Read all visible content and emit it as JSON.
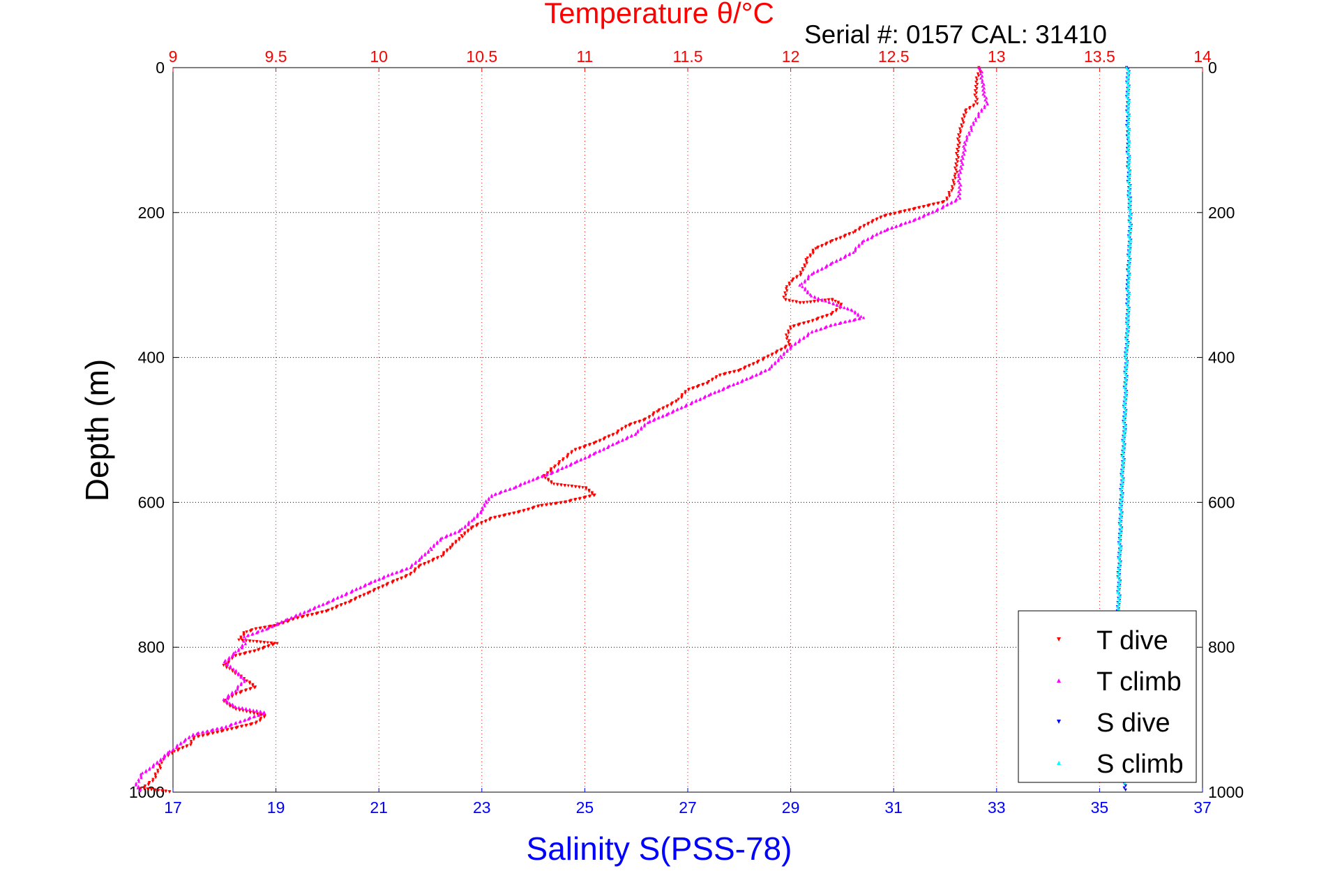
{
  "chart_data": {
    "type": "scatter",
    "title": "Temperature θ/°C",
    "subtitle": "Serial #: 0157  CAL: 31410",
    "xlabel": "Salinity S(PSS-78)",
    "ylabel": "Depth (m)",
    "top_axis": {
      "label": "Temperature θ/°C",
      "range": [
        9,
        14
      ],
      "ticks": [
        "9",
        "9.5",
        "10",
        "10.5",
        "11",
        "11.5",
        "12",
        "12.5",
        "13",
        "13.5",
        "14"
      ],
      "color": "#ff0000"
    },
    "bottom_axis": {
      "label": "Salinity S(PSS-78)",
      "range": [
        17,
        37
      ],
      "ticks": [
        "17",
        "19",
        "21",
        "23",
        "25",
        "27",
        "29",
        "31",
        "33",
        "35",
        "37"
      ],
      "color": "#0000ff"
    },
    "y_axis": {
      "label": "Depth (m)",
      "range": [
        0,
        1000
      ],
      "reversed": true,
      "ticks": [
        "0",
        "200",
        "400",
        "600",
        "800",
        "1000"
      ]
    },
    "grid": true,
    "legend_position": "bottom-right",
    "series": [
      {
        "name": "T dive",
        "axis": "top",
        "color": "#ff0000",
        "marker": "triangle-down",
        "points": [
          [
            12.92,
            0
          ],
          [
            12.9,
            20
          ],
          [
            12.9,
            50
          ],
          [
            12.85,
            60
          ],
          [
            12.82,
            90
          ],
          [
            12.8,
            150
          ],
          [
            12.78,
            170
          ],
          [
            12.75,
            185
          ],
          [
            12.6,
            195
          ],
          [
            12.45,
            205
          ],
          [
            12.38,
            215
          ],
          [
            12.3,
            228
          ],
          [
            12.2,
            240
          ],
          [
            12.12,
            250
          ],
          [
            12.08,
            265
          ],
          [
            12.05,
            285
          ],
          [
            12.0,
            295
          ],
          [
            11.98,
            305
          ],
          [
            11.97,
            320
          ],
          [
            12.05,
            325
          ],
          [
            12.2,
            320
          ],
          [
            12.25,
            328
          ],
          [
            12.2,
            340
          ],
          [
            12.1,
            350
          ],
          [
            12.0,
            358
          ],
          [
            11.98,
            372
          ],
          [
            12.0,
            382
          ],
          [
            11.95,
            390
          ],
          [
            11.85,
            405
          ],
          [
            11.75,
            418
          ],
          [
            11.65,
            425
          ],
          [
            11.6,
            435
          ],
          [
            11.5,
            445
          ],
          [
            11.45,
            460
          ],
          [
            11.35,
            475
          ],
          [
            11.3,
            485
          ],
          [
            11.2,
            495
          ],
          [
            11.15,
            505
          ],
          [
            11.05,
            518
          ],
          [
            10.95,
            528
          ],
          [
            10.9,
            540
          ],
          [
            10.85,
            552
          ],
          [
            10.8,
            565
          ],
          [
            10.85,
            575
          ],
          [
            11.0,
            580
          ],
          [
            11.05,
            590
          ],
          [
            10.9,
            600
          ],
          [
            10.78,
            605
          ],
          [
            10.7,
            612
          ],
          [
            10.55,
            622
          ],
          [
            10.45,
            635
          ],
          [
            10.4,
            648
          ],
          [
            10.35,
            662
          ],
          [
            10.3,
            675
          ],
          [
            10.2,
            688
          ],
          [
            10.15,
            700
          ],
          [
            10.05,
            712
          ],
          [
            9.95,
            725
          ],
          [
            9.85,
            738
          ],
          [
            9.75,
            750
          ],
          [
            9.6,
            760
          ],
          [
            9.5,
            770
          ],
          [
            9.4,
            775
          ],
          [
            9.35,
            780
          ],
          [
            9.32,
            790
          ],
          [
            9.5,
            795
          ],
          [
            9.4,
            805
          ],
          [
            9.3,
            812
          ],
          [
            9.25,
            825
          ],
          [
            9.3,
            835
          ],
          [
            9.35,
            845
          ],
          [
            9.4,
            855
          ],
          [
            9.3,
            865
          ],
          [
            9.25,
            875
          ],
          [
            9.3,
            885
          ],
          [
            9.45,
            895
          ],
          [
            9.4,
            905
          ],
          [
            9.25,
            915
          ],
          [
            9.1,
            925
          ],
          [
            9.08,
            935
          ],
          [
            9.0,
            945
          ],
          [
            8.95,
            955
          ],
          [
            8.93,
            970
          ],
          [
            8.9,
            985
          ],
          [
            8.85,
            995
          ],
          [
            9.0,
            1000
          ]
        ]
      },
      {
        "name": "T climb",
        "axis": "top",
        "color": "#ff00ff",
        "marker": "triangle-up",
        "points": [
          [
            12.92,
            0
          ],
          [
            12.93,
            20
          ],
          [
            12.95,
            50
          ],
          [
            12.9,
            70
          ],
          [
            12.85,
            100
          ],
          [
            12.82,
            150
          ],
          [
            12.82,
            180
          ],
          [
            12.72,
            195
          ],
          [
            12.6,
            210
          ],
          [
            12.45,
            225
          ],
          [
            12.35,
            240
          ],
          [
            12.3,
            255
          ],
          [
            12.2,
            270
          ],
          [
            12.1,
            285
          ],
          [
            12.05,
            300
          ],
          [
            12.1,
            315
          ],
          [
            12.2,
            325
          ],
          [
            12.3,
            335
          ],
          [
            12.35,
            345
          ],
          [
            12.2,
            355
          ],
          [
            12.1,
            365
          ],
          [
            12.05,
            375
          ],
          [
            12.0,
            385
          ],
          [
            11.95,
            400
          ],
          [
            11.9,
            415
          ],
          [
            11.8,
            428
          ],
          [
            11.7,
            440
          ],
          [
            11.6,
            452
          ],
          [
            11.5,
            465
          ],
          [
            11.4,
            478
          ],
          [
            11.3,
            490
          ],
          [
            11.25,
            505
          ],
          [
            11.15,
            518
          ],
          [
            11.05,
            532
          ],
          [
            10.95,
            545
          ],
          [
            10.85,
            558
          ],
          [
            10.75,
            568
          ],
          [
            10.65,
            580
          ],
          [
            10.55,
            590
          ],
          [
            10.52,
            600
          ],
          [
            10.5,
            612
          ],
          [
            10.45,
            625
          ],
          [
            10.4,
            638
          ],
          [
            10.3,
            650
          ],
          [
            10.25,
            665
          ],
          [
            10.2,
            678
          ],
          [
            10.15,
            690
          ],
          [
            10.05,
            700
          ],
          [
            9.95,
            712
          ],
          [
            9.85,
            725
          ],
          [
            9.75,
            738
          ],
          [
            9.65,
            750
          ],
          [
            9.55,
            762
          ],
          [
            9.45,
            775
          ],
          [
            9.35,
            785
          ],
          [
            9.35,
            795
          ],
          [
            9.3,
            808
          ],
          [
            9.25,
            820
          ],
          [
            9.3,
            832
          ],
          [
            9.35,
            845
          ],
          [
            9.3,
            860
          ],
          [
            9.25,
            872
          ],
          [
            9.3,
            882
          ],
          [
            9.45,
            890
          ],
          [
            9.35,
            900
          ],
          [
            9.25,
            910
          ],
          [
            9.1,
            920
          ],
          [
            9.05,
            930
          ],
          [
            8.98,
            945
          ],
          [
            8.92,
            960
          ],
          [
            8.85,
            975
          ],
          [
            8.82,
            990
          ],
          [
            8.85,
            1000
          ]
        ]
      },
      {
        "name": "S dive",
        "axis": "bottom",
        "color": "#0000ff",
        "marker": "triangle-down",
        "points": [
          [
            35.55,
            0
          ],
          [
            35.55,
            100
          ],
          [
            35.58,
            180
          ],
          [
            35.6,
            200
          ],
          [
            35.58,
            250
          ],
          [
            35.55,
            300
          ],
          [
            35.55,
            350
          ],
          [
            35.52,
            400
          ],
          [
            35.5,
            450
          ],
          [
            35.48,
            500
          ],
          [
            35.45,
            550
          ],
          [
            35.42,
            600
          ],
          [
            35.4,
            650
          ],
          [
            35.38,
            700
          ],
          [
            35.37,
            750
          ],
          [
            35.38,
            800
          ],
          [
            35.4,
            850
          ],
          [
            35.42,
            900
          ],
          [
            35.45,
            950
          ],
          [
            35.5,
            1000
          ]
        ]
      },
      {
        "name": "S climb",
        "axis": "bottom",
        "color": "#00ffff",
        "marker": "triangle-up",
        "points": [
          [
            35.55,
            0
          ],
          [
            35.56,
            100
          ],
          [
            35.58,
            180
          ],
          [
            35.6,
            200
          ],
          [
            35.58,
            250
          ],
          [
            35.56,
            300
          ],
          [
            35.55,
            350
          ],
          [
            35.52,
            400
          ],
          [
            35.5,
            450
          ],
          [
            35.48,
            500
          ],
          [
            35.45,
            550
          ],
          [
            35.42,
            600
          ],
          [
            35.4,
            650
          ],
          [
            35.38,
            700
          ],
          [
            35.37,
            750
          ],
          [
            35.38,
            800
          ],
          [
            35.4,
            850
          ],
          [
            35.42,
            900
          ],
          [
            35.46,
            950
          ],
          [
            35.5,
            990
          ]
        ]
      }
    ]
  }
}
